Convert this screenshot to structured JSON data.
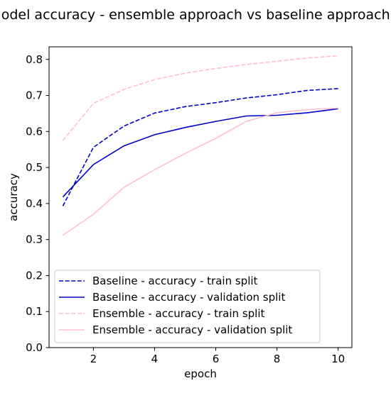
{
  "chart_data": {
    "type": "line",
    "title": "Model accuracy - ensemble approach vs baseline approach",
    "xlabel": "epoch",
    "ylabel": "accuracy",
    "xlim": [
      0.55,
      10.45
    ],
    "ylim": [
      0.0,
      0.835
    ],
    "xticks": [
      2,
      4,
      6,
      8,
      10
    ],
    "yticks": [
      0.0,
      0.1,
      0.2,
      0.3,
      0.4,
      0.5,
      0.6,
      0.7,
      0.8
    ],
    "xtick_labels": [
      "2",
      "4",
      "6",
      "8",
      "10"
    ],
    "ytick_labels": [
      "0.0",
      "0.1",
      "0.2",
      "0.3",
      "0.4",
      "0.5",
      "0.6",
      "0.7",
      "0.8"
    ],
    "grid": false,
    "legend_position": "lower-left",
    "x": [
      1,
      2,
      3,
      4,
      5,
      6,
      7,
      8,
      9,
      10
    ],
    "series": [
      {
        "name": "Baseline - accuracy - train split",
        "color": "#0000cc",
        "dash": "dashed",
        "values": [
          0.393,
          0.556,
          0.615,
          0.651,
          0.669,
          0.68,
          0.693,
          0.702,
          0.714,
          0.719
        ]
      },
      {
        "name": "Baseline - accuracy - validation split",
        "color": "#0000cc",
        "dash": "solid",
        "values": [
          0.418,
          0.508,
          0.56,
          0.591,
          0.611,
          0.628,
          0.643,
          0.645,
          0.652,
          0.663
        ]
      },
      {
        "name": "Ensemble - accuracy - train split",
        "color": "#ffc0cb",
        "dash": "dashed",
        "values": [
          0.575,
          0.678,
          0.717,
          0.744,
          0.762,
          0.775,
          0.786,
          0.795,
          0.804,
          0.81
        ]
      },
      {
        "name": "Ensemble - accuracy - validation split",
        "color": "#ffc0cb",
        "dash": "solid",
        "values": [
          0.312,
          0.37,
          0.445,
          0.494,
          0.539,
          0.581,
          0.628,
          0.652,
          0.661,
          0.665
        ]
      }
    ]
  }
}
